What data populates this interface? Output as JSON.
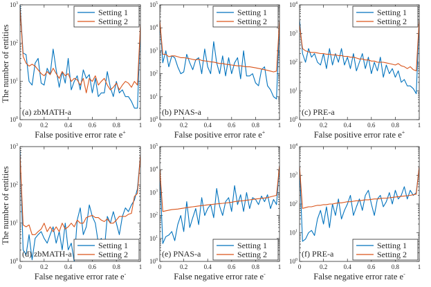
{
  "chart_data": [
    {
      "type": "line",
      "label": "(a) zbMATH-a",
      "xlabel": "False positive error rate e",
      "xlabel_sup": "+",
      "ylabel": "The number of entities",
      "xlim": [
        0,
        1
      ],
      "yscale": "log",
      "ylim": [
        1,
        1000
      ],
      "xticks": [
        "0",
        "0.2",
        "0.4",
        "0.6",
        "0.8",
        "1"
      ],
      "yticks": [
        {
          "base": "10",
          "exp": "0"
        },
        {
          "base": "10",
          "exp": "1"
        },
        {
          "base": "10",
          "exp": "2"
        },
        {
          "base": "10",
          "exp": "3"
        }
      ],
      "legend_position": "top-right",
      "series": [
        {
          "name": "Setting 1",
          "color": "#0072bd",
          "values": [
            1000,
            55,
            50,
            10,
            8,
            30,
            40,
            9,
            8,
            22,
            15,
            70,
            20,
            7,
            18,
            9,
            40,
            6,
            10,
            14,
            6,
            20,
            12,
            15,
            5,
            12,
            4,
            5,
            5,
            18,
            7,
            4,
            10,
            5,
            6,
            4,
            4,
            3,
            2,
            2,
            300
          ]
        },
        {
          "name": "Setting 2",
          "color": "#d95319",
          "values": [
            800,
            45,
            30,
            25,
            28,
            25,
            20,
            16,
            14,
            18,
            15,
            22,
            16,
            12,
            18,
            14,
            16,
            10,
            12,
            11,
            8,
            12,
            5,
            12,
            10,
            14,
            8,
            10,
            12,
            8,
            6,
            7,
            9,
            6,
            8,
            10,
            9,
            7,
            10,
            8,
            300
          ]
        }
      ]
    },
    {
      "type": "line",
      "label": "(b) PNAS-a",
      "xlabel": "False positive error rate e",
      "xlabel_sup": "+",
      "ylabel": "",
      "xlim": [
        0,
        1
      ],
      "yscale": "log",
      "ylim": [
        1,
        100000
      ],
      "xticks": [
        "0",
        "0.2",
        "0.4",
        "0.6",
        "0.8",
        "1"
      ],
      "yticks": [
        {
          "base": "10",
          "exp": "0"
        },
        {
          "base": "10",
          "exp": "1"
        },
        {
          "base": "10",
          "exp": "2"
        },
        {
          "base": "10",
          "exp": "3"
        },
        {
          "base": "10",
          "exp": "4"
        },
        {
          "base": "10",
          "exp": "5"
        }
      ],
      "legend_position": "top-right",
      "series": [
        {
          "name": "Setting 1",
          "color": "#0072bd",
          "values": [
            20000,
            300,
            1000,
            200,
            600,
            500,
            200,
            100,
            120,
            700,
            300,
            150,
            400,
            500,
            100,
            1200,
            200,
            100,
            2500,
            300,
            100,
            600,
            80,
            500,
            100,
            300,
            500,
            60,
            1000,
            80,
            80,
            100,
            40,
            30,
            150,
            200,
            30,
            20,
            10,
            8,
            20000
          ]
        },
        {
          "name": "Setting 2",
          "color": "#d95319",
          "values": [
            20000,
            700,
            700,
            550,
            600,
            600,
            550,
            500,
            500,
            480,
            450,
            420,
            400,
            430,
            380,
            360,
            350,
            330,
            320,
            300,
            280,
            280,
            260,
            250,
            240,
            230,
            220,
            220,
            210,
            200,
            200,
            190,
            180,
            170,
            160,
            150,
            140,
            130,
            120,
            130,
            20000
          ]
        }
      ]
    },
    {
      "type": "line",
      "label": "(c) PRE-a",
      "xlabel": "False positive error rate e",
      "xlabel_sup": "+",
      "ylabel": "",
      "xlim": [
        0,
        1
      ],
      "yscale": "log",
      "ylim": [
        1,
        10000
      ],
      "xticks": [
        "0",
        "0.2",
        "0.4",
        "0.6",
        "0.8",
        "1"
      ],
      "yticks": [
        {
          "base": "10",
          "exp": "0"
        },
        {
          "base": "10",
          "exp": "1"
        },
        {
          "base": "10",
          "exp": "2"
        },
        {
          "base": "10",
          "exp": "3"
        },
        {
          "base": "10",
          "exp": "4"
        }
      ],
      "legend_position": "top-right",
      "series": [
        {
          "name": "Setting 1",
          "color": "#0072bd",
          "values": [
            3000,
            200,
            100,
            300,
            150,
            200,
            100,
            80,
            200,
            60,
            300,
            80,
            200,
            100,
            300,
            80,
            150,
            60,
            200,
            50,
            100,
            200,
            60,
            150,
            40,
            100,
            50,
            150,
            30,
            80,
            40,
            60,
            30,
            50,
            20,
            25,
            15,
            15,
            12,
            8,
            3000
          ]
        },
        {
          "name": "Setting 2",
          "color": "#d95319",
          "values": [
            2000,
            300,
            250,
            230,
            220,
            220,
            210,
            200,
            200,
            190,
            190,
            180,
            180,
            170,
            170,
            160,
            160,
            150,
            150,
            140,
            130,
            130,
            120,
            120,
            110,
            110,
            100,
            100,
            100,
            95,
            90,
            85,
            80,
            90,
            75,
            70,
            60,
            70,
            55,
            50,
            3000
          ]
        }
      ]
    },
    {
      "type": "line",
      "label": "(d) zbMATH-a",
      "xlabel": "False negative error rate e",
      "xlabel_sup": "-",
      "ylabel": "The number of entities",
      "xlim": [
        0,
        1
      ],
      "yscale": "log",
      "ylim": [
        1,
        1000
      ],
      "xticks": [
        "0",
        "0.2",
        "0.4",
        "0.6",
        "0.8",
        "1"
      ],
      "yticks": [
        {
          "base": "10",
          "exp": "0"
        },
        {
          "base": "10",
          "exp": "1"
        },
        {
          "base": "10",
          "exp": "2"
        },
        {
          "base": "10",
          "exp": "3"
        }
      ],
      "legend_position": "bottom-right",
      "series": [
        {
          "name": "Setting 1",
          "color": "#0072bd",
          "values": [
            800,
            2,
            1.5,
            5,
            1.1,
            4,
            5,
            6,
            4,
            3,
            5,
            8,
            3,
            6,
            2,
            10,
            2,
            3,
            1,
            12,
            25,
            5,
            8,
            30,
            15,
            10,
            3,
            4,
            2,
            15,
            10,
            20,
            10,
            5,
            15,
            25,
            20,
            30,
            40,
            80,
            600
          ]
        },
        {
          "name": "Setting 2",
          "color": "#d95319",
          "values": [
            600,
            9,
            8,
            9,
            5,
            5,
            6,
            7,
            10,
            6,
            8,
            6,
            8,
            6,
            10,
            7,
            8,
            10,
            8,
            12,
            10,
            10,
            14,
            15,
            16,
            14,
            14,
            12,
            11,
            13,
            10,
            10,
            12,
            15,
            15,
            15,
            17,
            18,
            50,
            60,
            600
          ]
        }
      ]
    },
    {
      "type": "line",
      "label": "(e) PNAS-a",
      "xlabel": "False negative error rate e",
      "xlabel_sup": "-",
      "ylabel": "",
      "xlim": [
        0,
        1
      ],
      "yscale": "log",
      "ylim": [
        1,
        100000
      ],
      "xticks": [
        "0",
        "0.2",
        "0.4",
        "0.6",
        "0.8",
        "1"
      ],
      "yticks": [
        {
          "base": "10",
          "exp": "0"
        },
        {
          "base": "10",
          "exp": "1"
        },
        {
          "base": "10",
          "exp": "2"
        },
        {
          "base": "10",
          "exp": "3"
        },
        {
          "base": "10",
          "exp": "4"
        },
        {
          "base": "10",
          "exp": "5"
        }
      ],
      "legend_position": "bottom-right",
      "series": [
        {
          "name": "Setting 1",
          "color": "#0072bd",
          "values": [
            8000,
            6,
            12,
            14,
            20,
            8,
            40,
            100,
            20,
            400,
            30,
            80,
            200,
            40,
            600,
            100,
            200,
            300,
            80,
            1500,
            250,
            100,
            400,
            600,
            150,
            2000,
            300,
            800,
            150,
            1000,
            200,
            600,
            500,
            300,
            700,
            400,
            800,
            200,
            500,
            300,
            15000
          ]
        },
        {
          "name": "Setting 2",
          "color": "#d95319",
          "values": [
            10000,
            150,
            160,
            170,
            180,
            185,
            190,
            200,
            210,
            220,
            230,
            240,
            250,
            260,
            270,
            280,
            290,
            300,
            310,
            320,
            330,
            340,
            350,
            360,
            380,
            400,
            420,
            430,
            440,
            460,
            480,
            500,
            520,
            540,
            560,
            580,
            600,
            650,
            700,
            750,
            15000
          ]
        }
      ]
    },
    {
      "type": "line",
      "label": "(f) PRE-a",
      "xlabel": "False negative error rate e",
      "xlabel_sup": "-",
      "ylabel": "",
      "xlim": [
        0,
        1
      ],
      "yscale": "log",
      "ylim": [
        1,
        10000
      ],
      "xticks": [
        "0",
        "0.2",
        "0.4",
        "0.6",
        "0.8",
        "1"
      ],
      "yticks": [
        {
          "base": "10",
          "exp": "0"
        },
        {
          "base": "10",
          "exp": "1"
        },
        {
          "base": "10",
          "exp": "2"
        },
        {
          "base": "10",
          "exp": "3"
        },
        {
          "base": "10",
          "exp": "4"
        }
      ],
      "legend_position": "bottom-right",
      "series": [
        {
          "name": "Setting 1",
          "color": "#0072bd",
          "values": [
            2000,
            5,
            6,
            10,
            12,
            8,
            30,
            60,
            20,
            80,
            15,
            100,
            40,
            150,
            30,
            60,
            100,
            200,
            40,
            80,
            150,
            60,
            200,
            300,
            100,
            40,
            150,
            200,
            80,
            120,
            250,
            100,
            300,
            150,
            200,
            400,
            150,
            300,
            200,
            250,
            2000
          ]
        },
        {
          "name": "Setting 2",
          "color": "#d95319",
          "values": [
            2000,
            70,
            75,
            80,
            80,
            85,
            90,
            90,
            95,
            95,
            100,
            100,
            105,
            110,
            110,
            115,
            120,
            120,
            125,
            130,
            130,
            135,
            140,
            140,
            145,
            150,
            150,
            155,
            160,
            160,
            165,
            170,
            175,
            180,
            185,
            190,
            195,
            200,
            210,
            220,
            2000
          ]
        }
      ]
    }
  ]
}
